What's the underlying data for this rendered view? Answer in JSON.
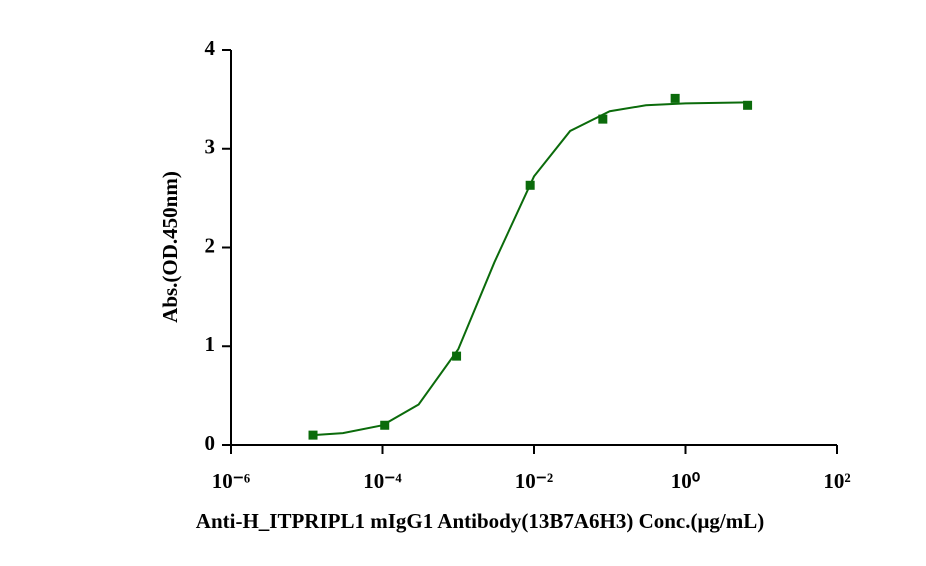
{
  "chart_data": {
    "type": "scatter",
    "x_label": "Anti-H_ITPRIPL1 mIgG1 Antibody(13B7A6H3) Conc.(μg/mL)",
    "y_label": "Abs.(OD.450nm)",
    "x": [
      1.21e-05,
      0.000107,
      0.00095,
      0.0089,
      0.081,
      0.73,
      6.6
    ],
    "values": [
      0.1,
      0.2,
      0.9,
      2.63,
      3.3,
      3.51,
      3.44
    ],
    "color": "#0b6b0b",
    "fit_x": [
      1.21e-05,
      3e-05,
      0.0001,
      0.0003,
      0.001,
      0.003,
      0.01,
      0.03,
      0.1,
      0.3,
      1,
      6.6
    ],
    "fit_values": [
      0.1,
      0.12,
      0.2,
      0.41,
      0.97,
      1.85,
      2.72,
      3.18,
      3.38,
      3.44,
      3.46,
      3.47
    ],
    "xscale": "log",
    "xlim": [
      1e-06,
      100
    ],
    "xticks": [
      {
        "value": 1e-06,
        "label": "10⁻⁶"
      },
      {
        "value": 0.0001,
        "label": "10⁻⁴"
      },
      {
        "value": 0.01,
        "label": "10⁻²"
      },
      {
        "value": 1,
        "label": "10⁰"
      },
      {
        "value": 100,
        "label": "10²"
      }
    ],
    "ylim": [
      0,
      4
    ],
    "yticks": [
      0,
      1,
      2,
      3,
      4
    ]
  }
}
